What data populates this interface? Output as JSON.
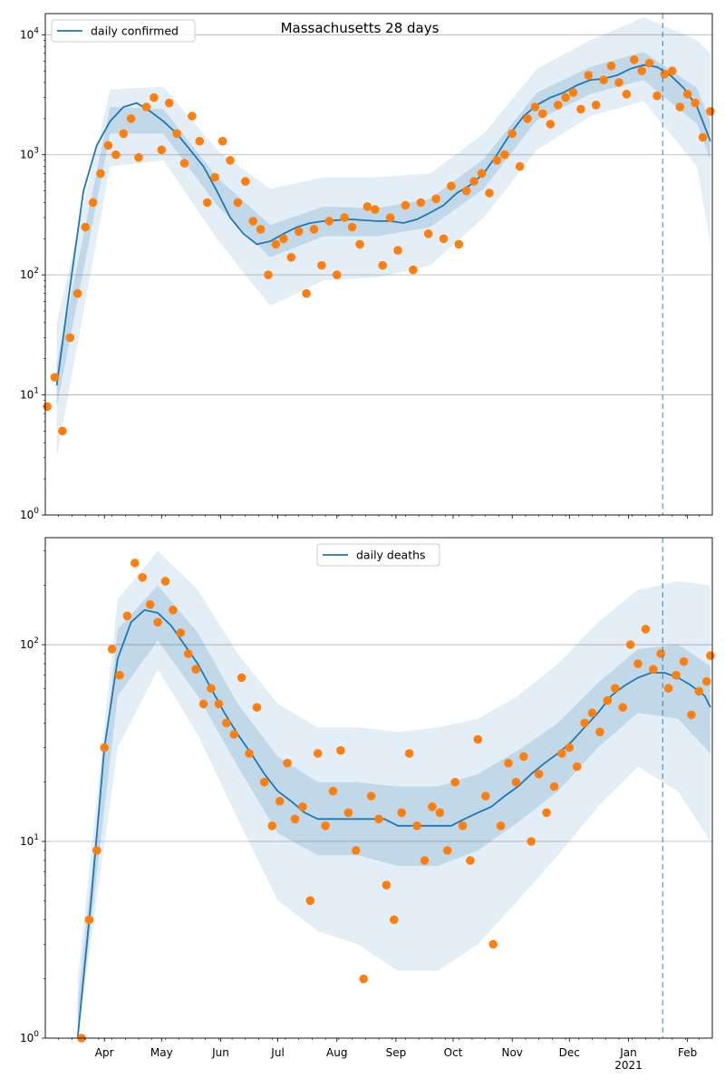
{
  "chart_data": [
    {
      "type": "line",
      "title": "Massachusetts 28 days",
      "yscale": "log",
      "ylim": [
        1,
        15000
      ],
      "grid": "horizontal",
      "legend": {
        "entries": [
          "daily confirmed"
        ],
        "placement": "top-left"
      },
      "y_tick_labels": [
        "10⁰",
        "10¹",
        "10²",
        "10³",
        "10⁴"
      ],
      "x_tick_labels": [
        "Apr",
        "May",
        "Jun",
        "Jul",
        "Aug",
        "Sep",
        "Oct",
        "Nov",
        "Dec",
        "Jan\n2021",
        "Feb"
      ],
      "forecast_start": "2021-01-19",
      "series": [
        {
          "name": "daily confirmed",
          "kind": "line",
          "x": [
            "2020-03-07",
            "2020-03-14",
            "2020-03-21",
            "2020-03-28",
            "2020-04-04",
            "2020-04-11",
            "2020-04-18",
            "2020-04-25",
            "2020-05-02",
            "2020-05-09",
            "2020-05-16",
            "2020-05-23",
            "2020-05-30",
            "2020-06-06",
            "2020-06-13",
            "2020-06-20",
            "2020-06-27",
            "2020-07-04",
            "2020-07-11",
            "2020-07-18",
            "2020-07-25",
            "2020-08-01",
            "2020-08-08",
            "2020-08-15",
            "2020-08-22",
            "2020-08-29",
            "2020-09-05",
            "2020-09-12",
            "2020-09-19",
            "2020-09-26",
            "2020-10-03",
            "2020-10-10",
            "2020-10-17",
            "2020-10-24",
            "2020-10-31",
            "2020-11-07",
            "2020-11-14",
            "2020-11-21",
            "2020-11-28",
            "2020-12-05",
            "2020-12-12",
            "2020-12-19",
            "2020-12-26",
            "2021-01-02",
            "2021-01-09",
            "2021-01-16",
            "2021-01-23",
            "2021-01-30",
            "2021-02-06",
            "2021-02-13"
          ],
          "y": [
            12,
            80,
            500,
            1200,
            1900,
            2500,
            2700,
            2300,
            1900,
            1500,
            1100,
            800,
            500,
            300,
            220,
            180,
            190,
            220,
            250,
            270,
            280,
            285,
            290,
            285,
            280,
            280,
            270,
            290,
            330,
            380,
            480,
            560,
            700,
            1000,
            1500,
            2100,
            2600,
            3000,
            3300,
            3800,
            4200,
            4300,
            4600,
            5200,
            5600,
            5400,
            4600,
            3600,
            2500,
            1300
          ]
        },
        {
          "name": "daily confirmed observed",
          "kind": "scatter",
          "x": [
            "2020-03-02",
            "2020-03-06",
            "2020-03-10",
            "2020-03-14",
            "2020-03-18",
            "2020-03-22",
            "2020-03-26",
            "2020-03-30",
            "2020-04-03",
            "2020-04-07",
            "2020-04-11",
            "2020-04-15",
            "2020-04-19",
            "2020-04-23",
            "2020-04-27",
            "2020-05-01",
            "2020-05-05",
            "2020-05-09",
            "2020-05-13",
            "2020-05-17",
            "2020-05-21",
            "2020-05-25",
            "2020-05-29",
            "2020-06-02",
            "2020-06-06",
            "2020-06-10",
            "2020-06-14",
            "2020-06-18",
            "2020-06-22",
            "2020-06-26",
            "2020-06-30",
            "2020-07-04",
            "2020-07-08",
            "2020-07-12",
            "2020-07-16",
            "2020-07-20",
            "2020-07-24",
            "2020-07-28",
            "2020-08-01",
            "2020-08-05",
            "2020-08-09",
            "2020-08-13",
            "2020-08-17",
            "2020-08-21",
            "2020-08-25",
            "2020-08-29",
            "2020-09-02",
            "2020-09-06",
            "2020-09-10",
            "2020-09-14",
            "2020-09-18",
            "2020-09-22",
            "2020-09-26",
            "2020-09-30",
            "2020-10-04",
            "2020-10-08",
            "2020-10-12",
            "2020-10-16",
            "2020-10-20",
            "2020-10-24",
            "2020-10-28",
            "2020-11-01",
            "2020-11-05",
            "2020-11-09",
            "2020-11-13",
            "2020-11-17",
            "2020-11-21",
            "2020-11-25",
            "2020-11-29",
            "2020-12-03",
            "2020-12-07",
            "2020-12-11",
            "2020-12-15",
            "2020-12-19",
            "2020-12-23",
            "2020-12-27",
            "2020-12-31",
            "2021-01-04",
            "2021-01-08",
            "2021-01-12",
            "2021-01-16",
            "2021-01-20",
            "2021-01-24",
            "2021-01-28",
            "2021-02-01",
            "2021-02-05",
            "2021-02-09",
            "2021-02-13"
          ],
          "y": [
            8,
            14,
            5,
            30,
            70,
            250,
            400,
            700,
            1200,
            1000,
            1500,
            2000,
            950,
            2500,
            3000,
            1100,
            2700,
            1500,
            850,
            2100,
            1300,
            400,
            650,
            1300,
            900,
            400,
            600,
            280,
            240,
            100,
            180,
            200,
            140,
            230,
            70,
            240,
            120,
            280,
            100,
            300,
            250,
            180,
            370,
            350,
            120,
            300,
            160,
            380,
            110,
            400,
            220,
            430,
            200,
            550,
            180,
            500,
            600,
            700,
            480,
            900,
            1000,
            1500,
            800,
            2000,
            2500,
            2200,
            1800,
            2600,
            3000,
            3300,
            2400,
            4600,
            2600,
            4200,
            5500,
            4000,
            3200,
            6200,
            5000,
            5800,
            3100,
            4700,
            5000,
            2500,
            3200,
            2700,
            1400,
            2300
          ]
        },
        {
          "name": "inner band",
          "kind": "band",
          "x": [
            "2020-03-07",
            "2020-04-04",
            "2020-05-02",
            "2020-05-30",
            "2020-06-27",
            "2020-07-25",
            "2020-08-22",
            "2020-09-19",
            "2020-10-17",
            "2020-11-14",
            "2020-12-12",
            "2021-01-09",
            "2021-02-06",
            "2021-02-13"
          ],
          "lower": [
            8,
            1500,
            1500,
            380,
            140,
            210,
            210,
            250,
            520,
            1950,
            3200,
            4200,
            1800,
            900
          ],
          "upper": [
            18,
            2500,
            2400,
            650,
            260,
            370,
            360,
            430,
            920,
            3300,
            5400,
            7200,
            3600,
            1900
          ]
        },
        {
          "name": "outer band",
          "kind": "band",
          "x": [
            "2020-03-07",
            "2020-04-04",
            "2020-05-02",
            "2020-05-30",
            "2020-06-27",
            "2020-07-25",
            "2020-08-22",
            "2020-09-19",
            "2020-10-17",
            "2020-11-14",
            "2020-12-12",
            "2021-01-09",
            "2021-02-06",
            "2021-02-13"
          ],
          "lower": [
            3,
            800,
            900,
            200,
            55,
            90,
            95,
            120,
            300,
            1100,
            2100,
            2800,
            800,
            180
          ],
          "upper": [
            40,
            3500,
            3700,
            1100,
            520,
            650,
            650,
            700,
            1500,
            5200,
            9000,
            14000,
            9000,
            7000
          ]
        }
      ]
    },
    {
      "type": "line",
      "title": "",
      "yscale": "log",
      "ylim": [
        1,
        350
      ],
      "grid": "horizontal",
      "legend": {
        "entries": [
          "daily deaths"
        ],
        "placement": "top-center"
      },
      "y_tick_labels": [
        "10⁰",
        "10¹",
        "10²"
      ],
      "x_tick_labels": [
        "Apr",
        "May",
        "Jun",
        "Jul",
        "Aug",
        "Sep",
        "Oct",
        "Nov",
        "Dec",
        "Jan\n2021",
        "Feb"
      ],
      "forecast_start": "2021-01-19",
      "series": [
        {
          "name": "daily deaths",
          "kind": "line",
          "x": [
            "2020-03-18",
            "2020-03-25",
            "2020-04-01",
            "2020-04-08",
            "2020-04-15",
            "2020-04-22",
            "2020-04-29",
            "2020-05-06",
            "2020-05-13",
            "2020-05-20",
            "2020-05-27",
            "2020-06-03",
            "2020-06-10",
            "2020-06-17",
            "2020-06-24",
            "2020-07-01",
            "2020-07-08",
            "2020-07-15",
            "2020-07-22",
            "2020-07-29",
            "2020-08-05",
            "2020-08-12",
            "2020-08-19",
            "2020-08-26",
            "2020-09-02",
            "2020-09-09",
            "2020-09-16",
            "2020-09-23",
            "2020-09-30",
            "2020-10-07",
            "2020-10-14",
            "2020-10-21",
            "2020-10-28",
            "2020-11-04",
            "2020-11-11",
            "2020-11-18",
            "2020-11-25",
            "2020-12-02",
            "2020-12-09",
            "2020-12-16",
            "2020-12-23",
            "2020-12-30",
            "2021-01-06",
            "2021-01-13",
            "2021-01-20",
            "2021-01-27",
            "2021-02-03",
            "2021-02-10",
            "2021-02-13"
          ],
          "y": [
            1,
            5,
            30,
            85,
            130,
            150,
            145,
            125,
            100,
            80,
            60,
            45,
            35,
            28,
            22,
            18,
            16,
            14,
            13,
            13,
            13,
            13,
            13,
            13,
            12,
            12,
            12,
            12,
            12,
            13,
            14,
            15,
            17,
            19,
            22,
            25,
            28,
            32,
            38,
            45,
            55,
            62,
            68,
            72,
            72,
            68,
            62,
            55,
            48
          ]
        },
        {
          "name": "daily deaths observed",
          "kind": "scatter",
          "x": [
            "2020-03-20",
            "2020-03-24",
            "2020-03-28",
            "2020-04-01",
            "2020-04-05",
            "2020-04-09",
            "2020-04-13",
            "2020-04-17",
            "2020-04-21",
            "2020-04-25",
            "2020-04-29",
            "2020-05-03",
            "2020-05-07",
            "2020-05-11",
            "2020-05-15",
            "2020-05-19",
            "2020-05-23",
            "2020-05-27",
            "2020-05-31",
            "2020-06-04",
            "2020-06-08",
            "2020-06-12",
            "2020-06-16",
            "2020-06-20",
            "2020-06-24",
            "2020-06-28",
            "2020-07-02",
            "2020-07-06",
            "2020-07-10",
            "2020-07-14",
            "2020-07-18",
            "2020-07-22",
            "2020-07-26",
            "2020-07-30",
            "2020-08-03",
            "2020-08-07",
            "2020-08-11",
            "2020-08-15",
            "2020-08-19",
            "2020-08-23",
            "2020-08-27",
            "2020-08-31",
            "2020-09-04",
            "2020-09-08",
            "2020-09-12",
            "2020-09-16",
            "2020-09-20",
            "2020-09-24",
            "2020-09-28",
            "2020-10-02",
            "2020-10-06",
            "2020-10-10",
            "2020-10-14",
            "2020-10-18",
            "2020-10-22",
            "2020-10-26",
            "2020-10-30",
            "2020-11-03",
            "2020-11-07",
            "2020-11-11",
            "2020-11-15",
            "2020-11-19",
            "2020-11-23",
            "2020-11-27",
            "2020-12-01",
            "2020-12-05",
            "2020-12-09",
            "2020-12-13",
            "2020-12-17",
            "2020-12-21",
            "2020-12-25",
            "2020-12-29",
            "2021-01-02",
            "2021-01-06",
            "2021-01-10",
            "2021-01-14",
            "2021-01-18",
            "2021-01-22",
            "2021-01-26",
            "2021-01-30",
            "2021-02-03",
            "2021-02-07",
            "2021-02-11",
            "2021-02-13"
          ],
          "y": [
            1,
            4,
            9,
            30,
            95,
            70,
            140,
            260,
            220,
            160,
            130,
            210,
            150,
            115,
            90,
            75,
            50,
            60,
            50,
            40,
            35,
            68,
            28,
            48,
            20,
            12,
            16,
            25,
            13,
            15,
            5,
            28,
            12,
            18,
            29,
            14,
            9,
            2,
            17,
            13,
            6,
            4,
            14,
            28,
            12,
            8,
            15,
            14,
            9,
            20,
            12,
            8,
            33,
            17,
            3,
            12,
            25,
            20,
            27,
            10,
            22,
            14,
            19,
            28,
            30,
            24,
            40,
            45,
            36,
            52,
            60,
            48,
            100,
            80,
            120,
            75,
            90,
            60,
            70,
            82,
            44,
            58,
            65,
            88
          ]
        },
        {
          "name": "inner band",
          "kind": "band",
          "x": [
            "2020-03-18",
            "2020-04-08",
            "2020-04-29",
            "2020-05-20",
            "2020-06-10",
            "2020-07-01",
            "2020-07-22",
            "2020-08-12",
            "2020-09-02",
            "2020-09-23",
            "2020-10-14",
            "2020-11-04",
            "2020-11-25",
            "2020-12-16",
            "2021-01-06",
            "2021-01-27",
            "2021-02-13"
          ],
          "lower": [
            1,
            55,
            105,
            55,
            24,
            11,
            8.5,
            8.5,
            7.5,
            7.5,
            9,
            12.5,
            18,
            30,
            45,
            42,
            28
          ],
          "upper": [
            1.5,
            120,
            200,
            115,
            50,
            27,
            20,
            20,
            19,
            19,
            22,
            29,
            40,
            64,
            95,
            100,
            78
          ]
        },
        {
          "name": "outer band",
          "kind": "band",
          "x": [
            "2020-03-18",
            "2020-04-08",
            "2020-04-29",
            "2020-05-20",
            "2020-06-10",
            "2020-07-01",
            "2020-07-22",
            "2020-08-12",
            "2020-09-02",
            "2020-09-23",
            "2020-10-14",
            "2020-11-04",
            "2020-11-25",
            "2020-12-16",
            "2021-01-06",
            "2021-01-27",
            "2021-02-13"
          ],
          "lower": [
            1,
            30,
            75,
            35,
            13,
            5,
            3.5,
            3,
            2.2,
            2.2,
            3,
            5,
            8.5,
            15,
            24,
            18,
            10
          ],
          "upper": [
            2,
            170,
            300,
            190,
            90,
            50,
            38,
            38,
            36,
            38,
            42,
            55,
            80,
            130,
            190,
            210,
            200
          ]
        }
      ]
    }
  ]
}
